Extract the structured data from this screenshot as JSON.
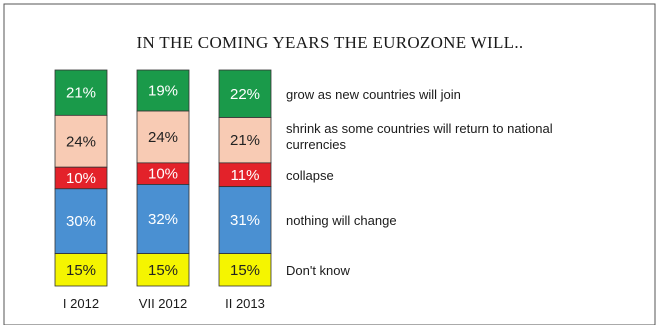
{
  "chart_data": {
    "type": "bar",
    "stacked": true,
    "percent": true,
    "title": "IN THE COMING YEARS THE EUROZONE WILL..",
    "xlabel": "",
    "ylabel": "",
    "categories": [
      "I 2012",
      "VII 2012",
      "II 2013"
    ],
    "series": [
      {
        "name": "grow as new countries will join",
        "color": "#1a9a4a",
        "label_color": "#ffffff",
        "values": [
          21,
          19,
          22
        ]
      },
      {
        "name": "shrink as some countries will  return to national currencies",
        "legend_lines": [
          "shrink as some countries will  return to national",
          "currencies"
        ],
        "color": "#f8cbb4",
        "label_color": "#222222",
        "values": [
          24,
          24,
          21
        ]
      },
      {
        "name": "collapse",
        "color": "#e3222a",
        "label_color": "#ffffff",
        "values": [
          10,
          10,
          11
        ]
      },
      {
        "name": "nothing will change",
        "color": "#4a90d2",
        "label_color": "#ffffff",
        "values": [
          30,
          32,
          31
        ]
      },
      {
        "name": "Don't know",
        "color": "#f5f500",
        "label_color": "#222222",
        "values": [
          15,
          15,
          15
        ]
      }
    ],
    "value_suffix": "%",
    "legend_position": "right",
    "grid": false
  }
}
